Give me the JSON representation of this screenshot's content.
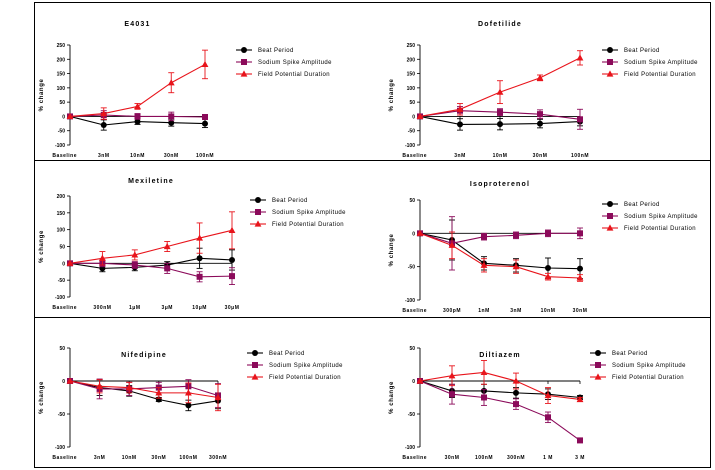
{
  "colors": {
    "beat_period": "#000000",
    "sodium_spike_amplitude": "#8b0a5a",
    "field_potential_duration": "#e8141b",
    "frame": "#000000"
  },
  "legend": [
    "Beat Period",
    "Sodium Spike Amplitude",
    "Field Potential Duration"
  ],
  "ylabel": "% change",
  "chart_data": [
    {
      "type": "line",
      "title": "E4031",
      "xlabel": "",
      "ylabel": "% change",
      "categories": [
        "Baseline",
        "3nM",
        "10nM",
        "30nM",
        "100nM"
      ],
      "y_ticks": [
        -100,
        -50,
        0,
        50,
        100,
        150,
        200,
        250
      ],
      "ylim": [
        -100,
        250
      ],
      "legend_position": "right",
      "series": [
        {
          "name": "Beat Period",
          "color": "#000000",
          "marker": "circle",
          "values": [
            0,
            -30,
            -18,
            -22,
            -25
          ],
          "errors": [
            0,
            18,
            10,
            12,
            14
          ]
        },
        {
          "name": "Sodium Spike Amplitude",
          "color": "#8b0a5a",
          "marker": "square",
          "values": [
            0,
            5,
            0,
            0,
            -2
          ],
          "errors": [
            0,
            15,
            10,
            15,
            8
          ]
        },
        {
          "name": "Field Potential Duration",
          "color": "#e8141b",
          "marker": "triangle",
          "values": [
            0,
            10,
            35,
            118,
            182
          ],
          "errors": [
            0,
            20,
            10,
            35,
            50
          ]
        }
      ]
    },
    {
      "type": "line",
      "title": "Dofetilide",
      "xlabel": "",
      "ylabel": "% change",
      "categories": [
        "Baseline",
        "3nM",
        "10nM",
        "30nM",
        "100nM"
      ],
      "y_ticks": [
        -100,
        -50,
        0,
        50,
        100,
        150,
        200,
        250
      ],
      "ylim": [
        -100,
        250
      ],
      "legend_position": "right",
      "series": [
        {
          "name": "Beat Period",
          "color": "#000000",
          "marker": "circle",
          "values": [
            0,
            -28,
            -27,
            -25,
            -18
          ],
          "errors": [
            0,
            20,
            20,
            15,
            15
          ]
        },
        {
          "name": "Sodium Spike Amplitude",
          "color": "#8b0a5a",
          "marker": "square",
          "values": [
            0,
            20,
            15,
            8,
            -10
          ],
          "errors": [
            0,
            15,
            12,
            15,
            35
          ]
        },
        {
          "name": "Field Potential Duration",
          "color": "#e8141b",
          "marker": "triangle",
          "values": [
            0,
            25,
            85,
            135,
            205
          ],
          "errors": [
            0,
            20,
            40,
            10,
            25
          ]
        }
      ]
    },
    {
      "type": "line",
      "title": "Mexiletine",
      "xlabel": "",
      "ylabel": "% change",
      "categories": [
        "Baseline",
        "300nM",
        "1μM",
        "3μM",
        "10μM",
        "30μM"
      ],
      "y_ticks": [
        -100,
        -50,
        0,
        50,
        100,
        150,
        200
      ],
      "ylim": [
        -100,
        200
      ],
      "legend_position": "right",
      "series": [
        {
          "name": "Beat Period",
          "color": "#000000",
          "marker": "circle",
          "values": [
            0,
            -15,
            -12,
            -5,
            15,
            10
          ],
          "errors": [
            0,
            10,
            10,
            10,
            30,
            30
          ]
        },
        {
          "name": "Sodium Spike Amplitude",
          "color": "#8b0a5a",
          "marker": "square",
          "values": [
            0,
            0,
            -5,
            -15,
            -40,
            -38
          ],
          "errors": [
            0,
            10,
            10,
            15,
            15,
            25
          ]
        },
        {
          "name": "Field Potential Duration",
          "color": "#e8141b",
          "marker": "triangle",
          "values": [
            0,
            15,
            25,
            50,
            75,
            98
          ],
          "errors": [
            0,
            20,
            15,
            15,
            45,
            55
          ]
        }
      ]
    },
    {
      "type": "line",
      "title": "Isoproterenol",
      "xlabel": "",
      "ylabel": "% change",
      "categories": [
        "Baseline",
        "300pM",
        "1nM",
        "3nM",
        "10nM",
        "30nM"
      ],
      "y_ticks": [
        -100,
        -50,
        0,
        50
      ],
      "ylim": [
        -100,
        50
      ],
      "legend_position": "right",
      "series": [
        {
          "name": "Beat Period",
          "color": "#000000",
          "marker": "circle",
          "values": [
            0,
            -10,
            -45,
            -48,
            -52,
            -53
          ],
          "errors": [
            0,
            30,
            10,
            10,
            15,
            15
          ]
        },
        {
          "name": "Sodium Spike Amplitude",
          "color": "#8b0a5a",
          "marker": "square",
          "values": [
            0,
            -15,
            -5,
            -3,
            0,
            0
          ],
          "errors": [
            0,
            40,
            5,
            5,
            5,
            8
          ]
        },
        {
          "name": "Field Potential Duration",
          "color": "#e8141b",
          "marker": "triangle",
          "values": [
            0,
            -18,
            -48,
            -50,
            -65,
            -67
          ],
          "errors": [
            0,
            20,
            10,
            10,
            5,
            5
          ]
        }
      ]
    },
    {
      "type": "line",
      "title": "Nifedipine",
      "xlabel": "",
      "ylabel": "% change",
      "categories": [
        "Baseline",
        "3nM",
        "10nM",
        "30nM",
        "100nM",
        "300nM"
      ],
      "y_ticks": [
        -100,
        -50,
        0,
        50
      ],
      "ylim": [
        -100,
        50
      ],
      "legend_position": "right",
      "series": [
        {
          "name": "Beat Period",
          "color": "#000000",
          "marker": "circle",
          "values": [
            0,
            -10,
            -15,
            -28,
            -37,
            -30
          ],
          "errors": [
            0,
            12,
            8,
            3,
            8,
            12
          ]
        },
        {
          "name": "Sodium Spike Amplitude",
          "color": "#8b0a5a",
          "marker": "square",
          "values": [
            0,
            -12,
            -12,
            -10,
            -8,
            -22
          ],
          "errors": [
            0,
            15,
            10,
            8,
            10,
            18
          ]
        },
        {
          "name": "Field Potential Duration",
          "color": "#e8141b",
          "marker": "triangle",
          "values": [
            0,
            -8,
            -10,
            -18,
            -18,
            -25
          ],
          "errors": [
            0,
            10,
            8,
            8,
            15,
            20
          ]
        }
      ]
    },
    {
      "type": "line",
      "title": "Diltiazem",
      "xlabel": "",
      "ylabel": "% change",
      "categories": [
        "Baseline",
        "30nM",
        "100nM",
        "300nM",
        "1 M",
        "3 M"
      ],
      "y_ticks": [
        -100,
        -50,
        0,
        50
      ],
      "ylim": [
        -100,
        50
      ],
      "legend_position": "right",
      "series": [
        {
          "name": "Beat Period",
          "color": "#000000",
          "marker": "circle",
          "values": [
            0,
            -15,
            -15,
            -18,
            -20,
            -25
          ],
          "errors": [
            0,
            10,
            10,
            8,
            8,
            3
          ]
        },
        {
          "name": "Sodium Spike Amplitude",
          "color": "#8b0a5a",
          "marker": "square",
          "values": [
            0,
            -20,
            -25,
            -35,
            -55,
            -90
          ],
          "errors": [
            0,
            15,
            12,
            8,
            8,
            3
          ]
        },
        {
          "name": "Field Potential Duration",
          "color": "#e8141b",
          "marker": "triangle",
          "values": [
            0,
            8,
            13,
            0,
            -22,
            -28
          ],
          "errors": [
            0,
            15,
            18,
            12,
            12,
            3
          ]
        }
      ]
    }
  ]
}
